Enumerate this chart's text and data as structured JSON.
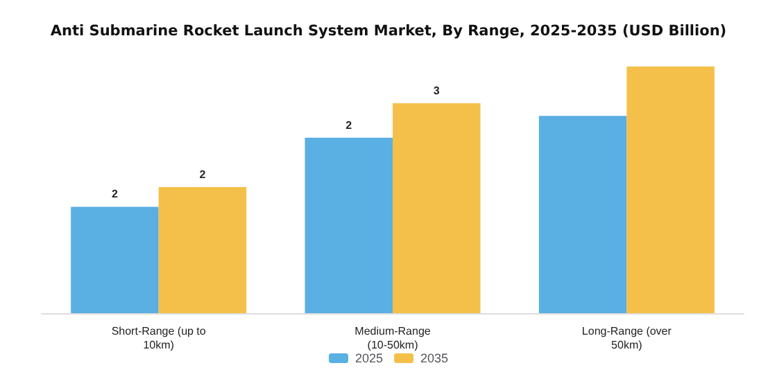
{
  "chart_data": {
    "type": "bar",
    "title": "Anti Submarine Rocket Launch System Market, By Range, 2025-2035 (USD Billion)",
    "categories": [
      "Short-Range (up to\n10km)",
      "Medium-Range\n(10-50km)",
      "Long-Range (over\n50km)"
    ],
    "tick_labels": "x",
    "legend": "bottom",
    "series": [
      {
        "name": "2025",
        "color": "#5aafe3",
        "values": [
          1.51,
          2.49,
          2.8
        ],
        "value_labels": [
          "2",
          "2",
          null
        ]
      },
      {
        "name": "2035",
        "color": "#f5c04a",
        "values": [
          1.79,
          2.98,
          3.5
        ],
        "value_labels": [
          "2",
          "3",
          null
        ]
      }
    ]
  }
}
